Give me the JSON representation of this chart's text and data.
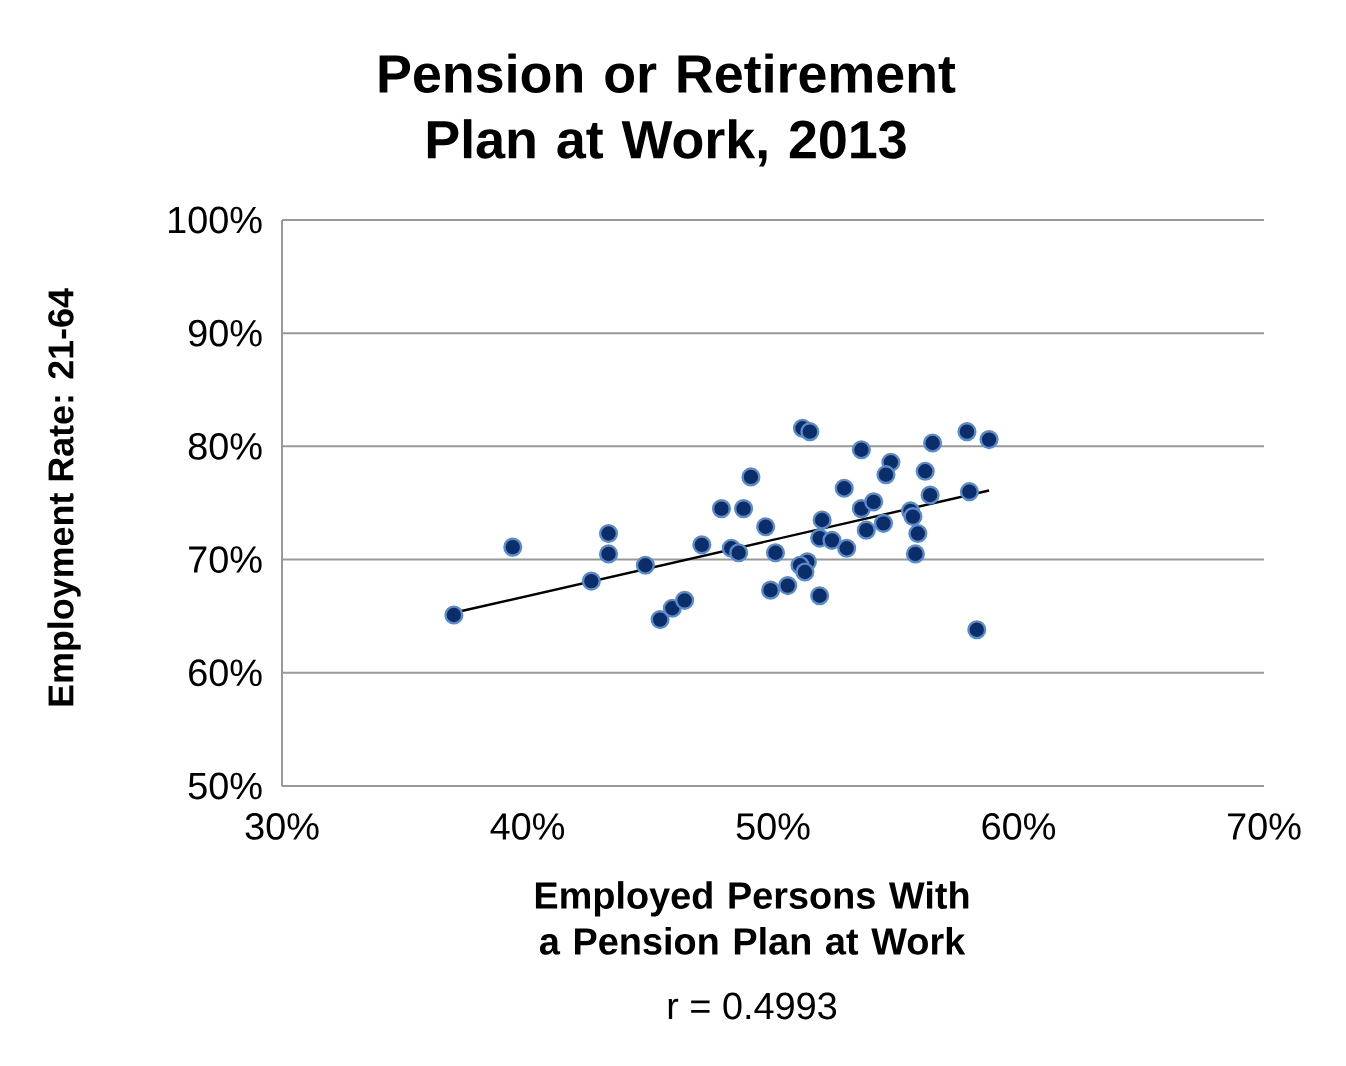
{
  "chart_data": {
    "type": "scatter",
    "title": "Pension or Retirement Plan at Work, 2013",
    "xlabel": "Employed Persons With a Pension Plan at Work",
    "ylabel": "Employment Rate: 21-64",
    "annotations": [
      "r = 0.4993"
    ],
    "xlim": [
      30,
      70
    ],
    "ylim": [
      50,
      100
    ],
    "xticks": [
      {
        "value": 30,
        "label": "30%"
      },
      {
        "value": 40,
        "label": "40%"
      },
      {
        "value": 50,
        "label": "50%"
      },
      {
        "value": 60,
        "label": "60%"
      },
      {
        "value": 70,
        "label": "70%"
      }
    ],
    "yticks": [
      {
        "value": 50,
        "label": "50%"
      },
      {
        "value": 60,
        "label": "60%"
      },
      {
        "value": 70,
        "label": "70%"
      },
      {
        "value": 80,
        "label": "80%"
      },
      {
        "value": 90,
        "label": "90%"
      },
      {
        "value": 100,
        "label": "100%"
      }
    ],
    "grid": "y",
    "series": [
      {
        "color": "#0b2e6b",
        "marker": "circle",
        "x": [
          37.0,
          39.4,
          43.3,
          43.3,
          42.6,
          44.8,
          45.4,
          45.9,
          46.4,
          47.1,
          47.9,
          48.3,
          48.8,
          48.6,
          49.1,
          51.2,
          51.5,
          53.6,
          56.5,
          57.9,
          58.8,
          54.8,
          54.6,
          56.2,
          52.9,
          56.4,
          58.0,
          53.6,
          54.1,
          55.6,
          55.7,
          52.0,
          49.7,
          54.5,
          53.8,
          55.9,
          51.9,
          52.4,
          53.0,
          50.1,
          55.8,
          51.4,
          51.1,
          51.3,
          50.6,
          49.9,
          51.9,
          58.3
        ],
        "values": [
          65.1,
          71.1,
          72.3,
          70.5,
          68.1,
          69.5,
          64.7,
          65.7,
          66.4,
          71.3,
          74.5,
          71.0,
          74.5,
          70.6,
          77.3,
          81.6,
          81.3,
          79.7,
          80.3,
          81.3,
          80.6,
          78.6,
          77.5,
          77.8,
          76.3,
          75.7,
          76.0,
          74.5,
          75.1,
          74.3,
          73.8,
          73.5,
          72.9,
          73.2,
          72.6,
          72.3,
          71.9,
          71.7,
          71.0,
          70.6,
          70.5,
          69.8,
          69.5,
          68.9,
          67.7,
          67.3,
          66.8,
          63.8
        ]
      },
      {
        "type": "line",
        "color": "#000000",
        "marker": "none",
        "line_style": "solid",
        "x": [
          37.0,
          58.8
        ],
        "values": [
          65.3,
          76.1
        ]
      }
    ]
  }
}
